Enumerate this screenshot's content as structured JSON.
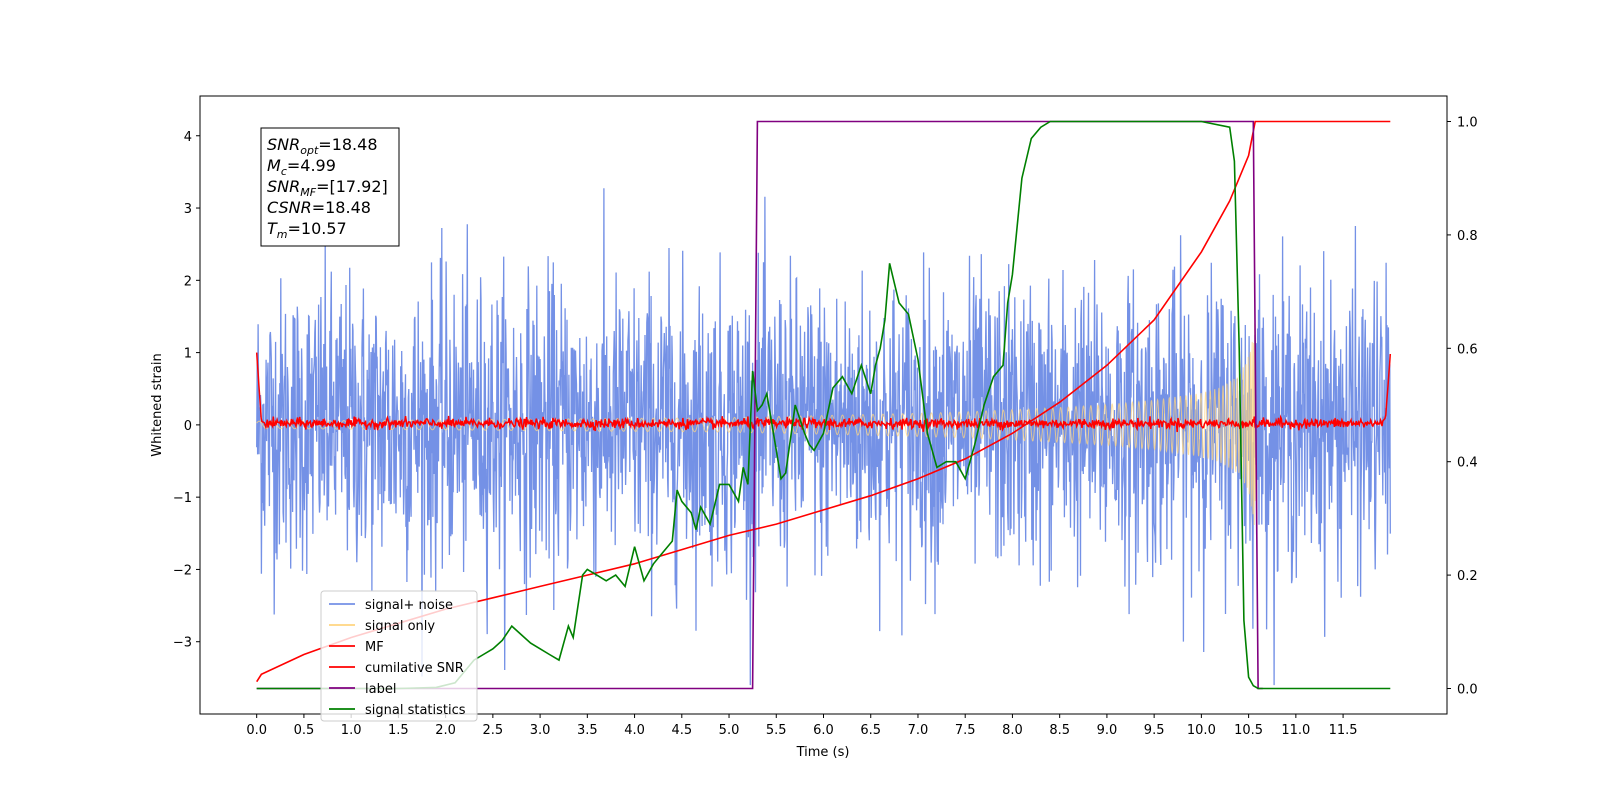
{
  "chart_data": {
    "type": "line",
    "xlabel": "Time (s)",
    "ylabel": "Whitened strain",
    "ylabel_right": "",
    "xlim": [
      -0.6,
      12.6
    ],
    "ylim": [
      -4.0,
      4.55
    ],
    "ylim_right": [
      -0.045,
      1.045
    ],
    "x_ticks": [
      0.0,
      0.5,
      1.0,
      1.5,
      2.0,
      2.5,
      3.0,
      3.5,
      4.0,
      4.5,
      5.0,
      5.5,
      6.0,
      6.5,
      7.0,
      7.5,
      8.0,
      8.5,
      9.0,
      9.5,
      10.0,
      10.5,
      11.0,
      11.5
    ],
    "x_tick_labels": [
      "0.0",
      "0.5",
      "1.0",
      "1.5",
      "2.0",
      "2.5",
      "3.0",
      "3.5",
      "4.0",
      "4.5",
      "5.0",
      "5.5",
      "6.0",
      "6.5",
      "7.0",
      "7.5",
      "8.0",
      "8.5",
      "9.0",
      "9.5",
      "10.0",
      "10.5",
      "11.0",
      "11.5"
    ],
    "y_ticks": [
      -3,
      -2,
      -1,
      0,
      1,
      2,
      3,
      4
    ],
    "y_tick_labels": [
      "−3",
      "−2",
      "−1",
      "0",
      "1",
      "2",
      "3",
      "4"
    ],
    "y_right_ticks": [
      0.0,
      0.2,
      0.4,
      0.6,
      0.8,
      1.0
    ],
    "y_right_tick_labels": [
      "0.0",
      "0.2",
      "0.4",
      "0.6",
      "0.8",
      "1.0"
    ],
    "grid": false,
    "legend_position": "bottom-left",
    "annotation": [
      {
        "sym": "SNR",
        "sub": "opt",
        "val": "=18.48"
      },
      {
        "sym": "M",
        "sub": "c",
        "val": "=4.99"
      },
      {
        "sym": "SNR",
        "sub": "MF",
        "val": "=[17.92]"
      },
      {
        "sym": "CSNR",
        "sub": "",
        "val": "=18.48"
      },
      {
        "sym": "T",
        "sub": "m",
        "val": "=10.57"
      }
    ],
    "series": [
      {
        "name": "signal+ noise",
        "color": "#7491e6",
        "axis": "left",
        "description_points": {
          "x_range": [
            0.0,
            12.0
          ],
          "std": 1.0,
          "max": 4.15,
          "min": -3.6
        }
      },
      {
        "name": "signal only",
        "color": "#ffd580",
        "axis": "left",
        "x": [
          0.0,
          1.0,
          2.0,
          3.0,
          4.0,
          5.0,
          6.0,
          7.0,
          7.5,
          8.0,
          8.5,
          9.0,
          9.5,
          10.0,
          10.2,
          10.4,
          10.5,
          10.55,
          10.57
        ],
        "amplitude": [
          0.05,
          0.06,
          0.07,
          0.08,
          0.09,
          0.1,
          0.13,
          0.16,
          0.18,
          0.21,
          0.24,
          0.28,
          0.34,
          0.44,
          0.52,
          0.68,
          0.95,
          1.3,
          1.5
        ]
      },
      {
        "name": "MF",
        "color": "#ff0000",
        "axis": "left",
        "x": [
          0.0,
          0.05,
          0.1,
          11.9,
          11.95,
          12.0
        ],
        "y": [
          1.0,
          0.05,
          0.02,
          0.02,
          0.1,
          0.98
        ],
        "noise_std": 0.035
      },
      {
        "name": "cumilative SNR",
        "color": "#ff0000",
        "axis": "right",
        "x": [
          0.0,
          0.05,
          0.5,
          1.0,
          1.5,
          2.0,
          2.5,
          3.0,
          3.5,
          4.0,
          4.5,
          5.0,
          5.5,
          6.0,
          6.5,
          7.0,
          7.5,
          8.0,
          8.5,
          9.0,
          9.5,
          10.0,
          10.3,
          10.5,
          10.57,
          12.0
        ],
        "y": [
          0.012,
          0.025,
          0.06,
          0.09,
          0.115,
          0.14,
          0.16,
          0.18,
          0.2,
          0.22,
          0.245,
          0.27,
          0.29,
          0.315,
          0.34,
          0.37,
          0.405,
          0.45,
          0.505,
          0.57,
          0.65,
          0.77,
          0.86,
          0.94,
          1.0,
          1.0
        ]
      },
      {
        "name": "label",
        "color": "#800080",
        "axis": "right",
        "x": [
          0.0,
          5.25,
          5.3,
          10.55,
          10.6,
          10.65
        ],
        "y": [
          0.0,
          0.0,
          1.0,
          1.0,
          0.0,
          0.0
        ]
      },
      {
        "name": "signal statistics",
        "color": "#008000",
        "axis": "right",
        "x": [
          0.0,
          0.5,
          1.0,
          1.5,
          1.9,
          2.1,
          2.2,
          2.3,
          2.4,
          2.5,
          2.6,
          2.7,
          2.8,
          2.9,
          3.0,
          3.1,
          3.2,
          3.3,
          3.35,
          3.45,
          3.5,
          3.6,
          3.7,
          3.8,
          3.9,
          4.0,
          4.1,
          4.2,
          4.3,
          4.4,
          4.45,
          4.5,
          4.6,
          4.65,
          4.7,
          4.8,
          4.9,
          5.0,
          5.1,
          5.15,
          5.2,
          5.25,
          5.3,
          5.35,
          5.4,
          5.5,
          5.55,
          5.6,
          5.7,
          5.8,
          5.85,
          5.9,
          6.0,
          6.1,
          6.2,
          6.3,
          6.4,
          6.5,
          6.55,
          6.6,
          6.65,
          6.7,
          6.8,
          6.9,
          7.0,
          7.1,
          7.2,
          7.3,
          7.4,
          7.5,
          7.6,
          7.7,
          7.8,
          7.9,
          7.95,
          8.0,
          8.1,
          8.2,
          8.3,
          8.4,
          8.5,
          8.6,
          8.8,
          9.0,
          9.5,
          10.0,
          10.3,
          10.35,
          10.4,
          10.45,
          10.5,
          10.55,
          10.6,
          10.65,
          11.0,
          11.5,
          12.0
        ],
        "y": [
          0.0,
          0.0,
          0.0,
          0.0,
          0.002,
          0.01,
          0.03,
          0.05,
          0.06,
          0.07,
          0.085,
          0.11,
          0.095,
          0.08,
          0.07,
          0.06,
          0.05,
          0.11,
          0.09,
          0.2,
          0.21,
          0.2,
          0.19,
          0.2,
          0.18,
          0.25,
          0.19,
          0.22,
          0.24,
          0.26,
          0.35,
          0.33,
          0.31,
          0.28,
          0.32,
          0.29,
          0.36,
          0.36,
          0.33,
          0.39,
          0.36,
          0.56,
          0.49,
          0.5,
          0.52,
          0.42,
          0.37,
          0.38,
          0.5,
          0.45,
          0.43,
          0.42,
          0.45,
          0.53,
          0.55,
          0.52,
          0.57,
          0.52,
          0.57,
          0.6,
          0.65,
          0.75,
          0.68,
          0.66,
          0.58,
          0.45,
          0.39,
          0.4,
          0.4,
          0.37,
          0.43,
          0.5,
          0.55,
          0.57,
          0.68,
          0.73,
          0.9,
          0.97,
          0.99,
          1.0,
          1.0,
          1.0,
          1.0,
          1.0,
          1.0,
          1.0,
          0.99,
          0.93,
          0.6,
          0.12,
          0.02,
          0.005,
          0.0,
          0.0,
          0.0,
          0.0,
          0.0
        ]
      }
    ]
  }
}
